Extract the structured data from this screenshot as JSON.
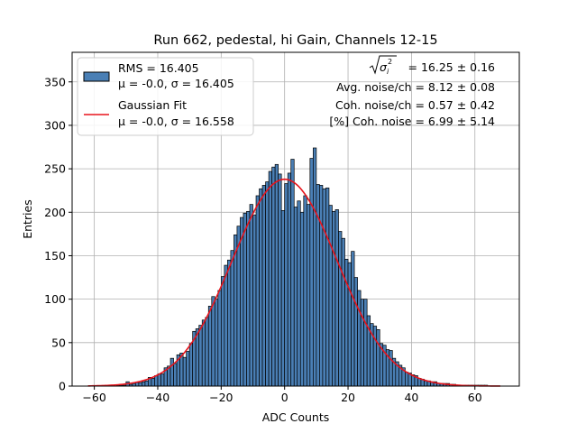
{
  "chart_data": {
    "type": "bar",
    "title": "Run 662, pedestal, hi Gain, Channels 12-15",
    "xlabel": "ADC Counts",
    "ylabel": "Entries",
    "xlim": [
      -67,
      74
    ],
    "ylim": [
      0,
      384
    ],
    "xticks": [
      -60,
      -40,
      -20,
      0,
      20,
      40,
      60
    ],
    "yticks": [
      0,
      50,
      100,
      150,
      200,
      250,
      300,
      350
    ],
    "grid": true,
    "legend_position": "top-left",
    "legend": [
      {
        "name": "RMS = 16.405",
        "sub": "μ = -0.0, σ = 16.405",
        "color": "#4a7fb5",
        "kind": "patch"
      },
      {
        "name": "Gaussian Fit",
        "sub": "μ = -0.0, σ = 16.558",
        "color": "#e8141c",
        "kind": "line"
      }
    ],
    "stats": [
      {
        "prefix": "",
        "value": "= 16.25 ± 0.16",
        "math": "sqrt-sigma-i-squared"
      },
      {
        "prefix": "",
        "value": "Avg. noise/ch = 8.12 ± 0.08"
      },
      {
        "prefix": "",
        "value": "Coh. noise/ch = 0.57 ± 0.42"
      },
      {
        "prefix": "",
        "value": "[%] Coh. noise = 6.99 ± 5.14"
      }
    ],
    "histogram": {
      "bin_start": -62,
      "bin_width": 1,
      "values": [
        0,
        0,
        0,
        0,
        0,
        0,
        0,
        0,
        0,
        1,
        1,
        1,
        5,
        2,
        3,
        4,
        4,
        5,
        6,
        10,
        9,
        12,
        14,
        14,
        21,
        23,
        32,
        26,
        36,
        38,
        33,
        40,
        49,
        63,
        66,
        70,
        76,
        79,
        92,
        103,
        100,
        110,
        126,
        139,
        145,
        156,
        174,
        184,
        194,
        199,
        201,
        209,
        197,
        219,
        227,
        231,
        235,
        247,
        252,
        255,
        244,
        202,
        233,
        245,
        261,
        206,
        213,
        200,
        219,
        209,
        262,
        274,
        232,
        231,
        227,
        228,
        208,
        201,
        203,
        178,
        170,
        146,
        142,
        155,
        125,
        110,
        100,
        100,
        81,
        72,
        69,
        65,
        49,
        47,
        42,
        41,
        32,
        28,
        24,
        21,
        16,
        15,
        13,
        12,
        9,
        8,
        6,
        6,
        5,
        5,
        3,
        3,
        3,
        3,
        2,
        2,
        1,
        1,
        1,
        1,
        1,
        1,
        1,
        1,
        1,
        1
      ]
    },
    "gaussian_fit": {
      "mu": -0.0,
      "sigma": 16.558,
      "peak": 238
    }
  }
}
